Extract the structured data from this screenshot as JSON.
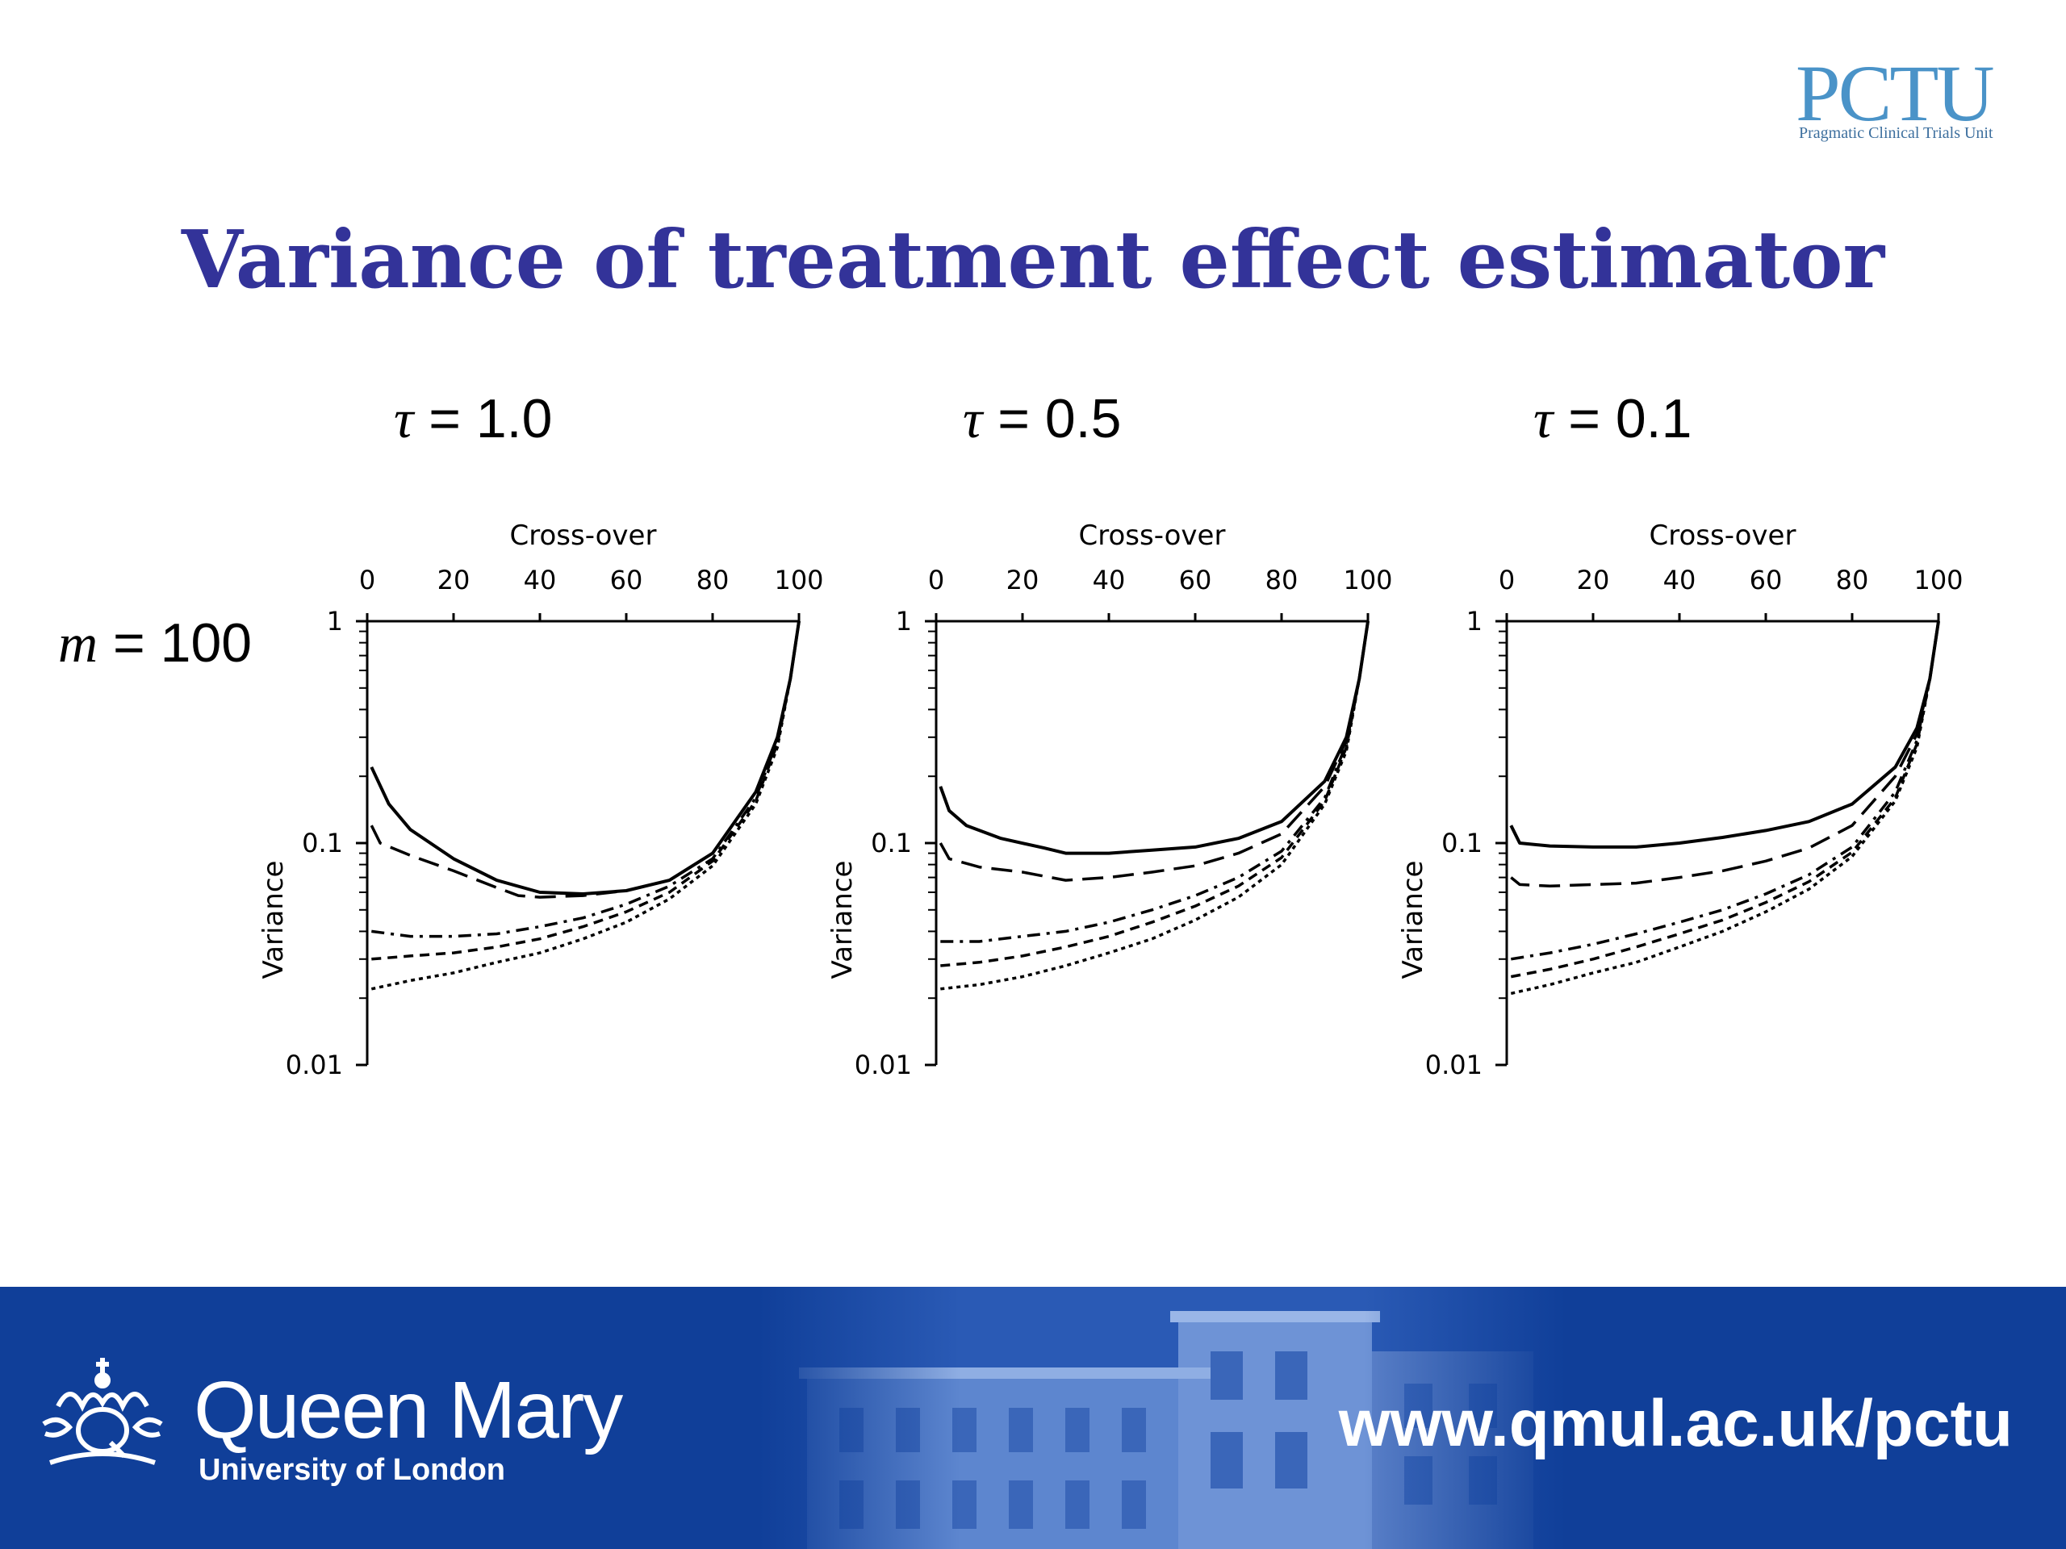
{
  "logo": {
    "letters": "PCTU",
    "subtitle": "Pragmatic Clinical Trials Unit"
  },
  "slide": {
    "title": "Variance of treatment effect estimator"
  },
  "row_label": {
    "symbol": "m",
    "value": "= 100"
  },
  "chart_data": [
    {
      "type": "line",
      "panel_label": {
        "symbol": "τ",
        "value": "= 1.0"
      },
      "xlabel": "Cross-over",
      "ylabel": "Variance",
      "xlim": [
        0,
        100
      ],
      "ylim": [
        0.01,
        1
      ],
      "yscale": "log",
      "xaxis_position": "top",
      "x_ticks": [
        "0",
        "20",
        "40",
        "60",
        "80",
        "100"
      ],
      "y_ticks": [
        "1",
        "0.1",
        "0.01"
      ],
      "grid": false,
      "legend": "none",
      "series": [
        {
          "style": "solid",
          "points": [
            [
              1,
              0.22
            ],
            [
              5,
              0.15
            ],
            [
              10,
              0.115
            ],
            [
              20,
              0.085
            ],
            [
              30,
              0.068
            ],
            [
              40,
              0.06
            ],
            [
              50,
              0.059
            ],
            [
              60,
              0.061
            ],
            [
              70,
              0.068
            ],
            [
              80,
              0.09
            ],
            [
              90,
              0.17
            ],
            [
              95,
              0.3
            ],
            [
              98,
              0.55
            ],
            [
              100,
              1.0
            ]
          ]
        },
        {
          "style": "long-dash",
          "points": [
            [
              1,
              0.12
            ],
            [
              3,
              0.1
            ],
            [
              10,
              0.088
            ],
            [
              20,
              0.075
            ],
            [
              30,
              0.063
            ],
            [
              35,
              0.058
            ],
            [
              40,
              0.057
            ],
            [
              50,
              0.058
            ],
            [
              60,
              0.061
            ],
            [
              70,
              0.068
            ],
            [
              80,
              0.09
            ],
            [
              90,
              0.17
            ],
            [
              95,
              0.3
            ],
            [
              98,
              0.55
            ],
            [
              100,
              1.0
            ]
          ]
        },
        {
          "style": "dash-dot",
          "points": [
            [
              1,
              0.04
            ],
            [
              10,
              0.038
            ],
            [
              20,
              0.038
            ],
            [
              30,
              0.039
            ],
            [
              40,
              0.042
            ],
            [
              50,
              0.046
            ],
            [
              60,
              0.053
            ],
            [
              70,
              0.064
            ],
            [
              80,
              0.085
            ],
            [
              90,
              0.16
            ],
            [
              95,
              0.29
            ],
            [
              98,
              0.55
            ],
            [
              100,
              1.0
            ]
          ]
        },
        {
          "style": "short-dash",
          "points": [
            [
              1,
              0.03
            ],
            [
              10,
              0.031
            ],
            [
              20,
              0.032
            ],
            [
              30,
              0.034
            ],
            [
              40,
              0.037
            ],
            [
              50,
              0.042
            ],
            [
              60,
              0.049
            ],
            [
              70,
              0.06
            ],
            [
              80,
              0.083
            ],
            [
              90,
              0.155
            ],
            [
              95,
              0.28
            ],
            [
              98,
              0.55
            ],
            [
              100,
              1.0
            ]
          ]
        },
        {
          "style": "dotted",
          "points": [
            [
              1,
              0.022
            ],
            [
              10,
              0.024
            ],
            [
              20,
              0.026
            ],
            [
              30,
              0.029
            ],
            [
              40,
              0.032
            ],
            [
              50,
              0.037
            ],
            [
              60,
              0.044
            ],
            [
              70,
              0.056
            ],
            [
              80,
              0.079
            ],
            [
              90,
              0.15
            ],
            [
              95,
              0.27
            ],
            [
              98,
              0.55
            ],
            [
              100,
              1.0
            ]
          ]
        }
      ]
    },
    {
      "type": "line",
      "panel_label": {
        "symbol": "τ",
        "value": "= 0.5"
      },
      "xlabel": "Cross-over",
      "ylabel": "Variance",
      "xlim": [
        0,
        100
      ],
      "ylim": [
        0.01,
        1
      ],
      "yscale": "log",
      "xaxis_position": "top",
      "x_ticks": [
        "0",
        "20",
        "40",
        "60",
        "80",
        "100"
      ],
      "y_ticks": [
        "1",
        "0.1",
        "0.01"
      ],
      "grid": false,
      "legend": "none",
      "series": [
        {
          "style": "solid",
          "points": [
            [
              1,
              0.18
            ],
            [
              3,
              0.14
            ],
            [
              7,
              0.12
            ],
            [
              15,
              0.105
            ],
            [
              25,
              0.095
            ],
            [
              30,
              0.09
            ],
            [
              40,
              0.09
            ],
            [
              50,
              0.093
            ],
            [
              60,
              0.096
            ],
            [
              70,
              0.105
            ],
            [
              80,
              0.125
            ],
            [
              90,
              0.19
            ],
            [
              95,
              0.3
            ],
            [
              98,
              0.55
            ],
            [
              100,
              1.0
            ]
          ]
        },
        {
          "style": "long-dash",
          "points": [
            [
              1,
              0.1
            ],
            [
              3,
              0.085
            ],
            [
              10,
              0.078
            ],
            [
              20,
              0.074
            ],
            [
              30,
              0.068
            ],
            [
              40,
              0.07
            ],
            [
              50,
              0.074
            ],
            [
              60,
              0.079
            ],
            [
              70,
              0.09
            ],
            [
              80,
              0.11
            ],
            [
              90,
              0.18
            ],
            [
              95,
              0.29
            ],
            [
              98,
              0.55
            ],
            [
              100,
              1.0
            ]
          ]
        },
        {
          "style": "dash-dot",
          "points": [
            [
              1,
              0.036
            ],
            [
              10,
              0.036
            ],
            [
              20,
              0.038
            ],
            [
              30,
              0.04
            ],
            [
              40,
              0.044
            ],
            [
              50,
              0.05
            ],
            [
              60,
              0.058
            ],
            [
              70,
              0.07
            ],
            [
              80,
              0.092
            ],
            [
              90,
              0.16
            ],
            [
              95,
              0.28
            ],
            [
              98,
              0.55
            ],
            [
              100,
              1.0
            ]
          ]
        },
        {
          "style": "short-dash",
          "points": [
            [
              1,
              0.028
            ],
            [
              10,
              0.029
            ],
            [
              20,
              0.031
            ],
            [
              30,
              0.034
            ],
            [
              40,
              0.038
            ],
            [
              50,
              0.044
            ],
            [
              60,
              0.052
            ],
            [
              70,
              0.064
            ],
            [
              80,
              0.086
            ],
            [
              90,
              0.155
            ],
            [
              95,
              0.27
            ],
            [
              98,
              0.55
            ],
            [
              100,
              1.0
            ]
          ]
        },
        {
          "style": "dotted",
          "points": [
            [
              1,
              0.022
            ],
            [
              10,
              0.023
            ],
            [
              20,
              0.025
            ],
            [
              30,
              0.028
            ],
            [
              40,
              0.032
            ],
            [
              50,
              0.037
            ],
            [
              60,
              0.045
            ],
            [
              70,
              0.057
            ],
            [
              80,
              0.08
            ],
            [
              90,
              0.15
            ],
            [
              95,
              0.26
            ],
            [
              98,
              0.55
            ],
            [
              100,
              1.0
            ]
          ]
        }
      ]
    },
    {
      "type": "line",
      "panel_label": {
        "symbol": "τ",
        "value": "= 0.1"
      },
      "xlabel": "Cross-over",
      "ylabel": "Variance",
      "xlim": [
        0,
        100
      ],
      "ylim": [
        0.01,
        1
      ],
      "yscale": "log",
      "xaxis_position": "top",
      "x_ticks": [
        "0",
        "20",
        "40",
        "60",
        "80",
        "100"
      ],
      "y_ticks": [
        "1",
        "0.1",
        "0.01"
      ],
      "grid": false,
      "legend": "none",
      "series": [
        {
          "style": "solid",
          "points": [
            [
              1,
              0.12
            ],
            [
              3,
              0.1
            ],
            [
              10,
              0.097
            ],
            [
              20,
              0.096
            ],
            [
              30,
              0.096
            ],
            [
              40,
              0.1
            ],
            [
              50,
              0.106
            ],
            [
              60,
              0.114
            ],
            [
              70,
              0.125
            ],
            [
              80,
              0.15
            ],
            [
              90,
              0.22
            ],
            [
              95,
              0.33
            ],
            [
              98,
              0.55
            ],
            [
              100,
              1.0
            ]
          ]
        },
        {
          "style": "long-dash",
          "points": [
            [
              1,
              0.07
            ],
            [
              3,
              0.065
            ],
            [
              10,
              0.064
            ],
            [
              20,
              0.065
            ],
            [
              30,
              0.066
            ],
            [
              40,
              0.07
            ],
            [
              50,
              0.075
            ],
            [
              60,
              0.083
            ],
            [
              70,
              0.095
            ],
            [
              80,
              0.12
            ],
            [
              90,
              0.2
            ],
            [
              95,
              0.31
            ],
            [
              98,
              0.55
            ],
            [
              100,
              1.0
            ]
          ]
        },
        {
          "style": "dash-dot",
          "points": [
            [
              1,
              0.03
            ],
            [
              10,
              0.032
            ],
            [
              20,
              0.035
            ],
            [
              30,
              0.039
            ],
            [
              40,
              0.044
            ],
            [
              50,
              0.05
            ],
            [
              60,
              0.059
            ],
            [
              70,
              0.072
            ],
            [
              80,
              0.096
            ],
            [
              90,
              0.17
            ],
            [
              95,
              0.29
            ],
            [
              98,
              0.55
            ],
            [
              100,
              1.0
            ]
          ]
        },
        {
          "style": "short-dash",
          "points": [
            [
              1,
              0.025
            ],
            [
              10,
              0.027
            ],
            [
              20,
              0.03
            ],
            [
              30,
              0.034
            ],
            [
              40,
              0.039
            ],
            [
              50,
              0.045
            ],
            [
              60,
              0.054
            ],
            [
              70,
              0.067
            ],
            [
              80,
              0.091
            ],
            [
              90,
              0.16
            ],
            [
              95,
              0.28
            ],
            [
              98,
              0.55
            ],
            [
              100,
              1.0
            ]
          ]
        },
        {
          "style": "dotted",
          "points": [
            [
              1,
              0.021
            ],
            [
              10,
              0.023
            ],
            [
              20,
              0.026
            ],
            [
              30,
              0.029
            ],
            [
              40,
              0.034
            ],
            [
              50,
              0.04
            ],
            [
              60,
              0.049
            ],
            [
              70,
              0.062
            ],
            [
              80,
              0.087
            ],
            [
              90,
              0.155
            ],
            [
              95,
              0.27
            ],
            [
              98,
              0.55
            ],
            [
              100,
              1.0
            ]
          ]
        }
      ]
    }
  ],
  "footer": {
    "background": "#103f99",
    "institution": "Queen Mary",
    "institution_sub": "University of London",
    "url": "www.qmul.ac.uk/pctu"
  }
}
